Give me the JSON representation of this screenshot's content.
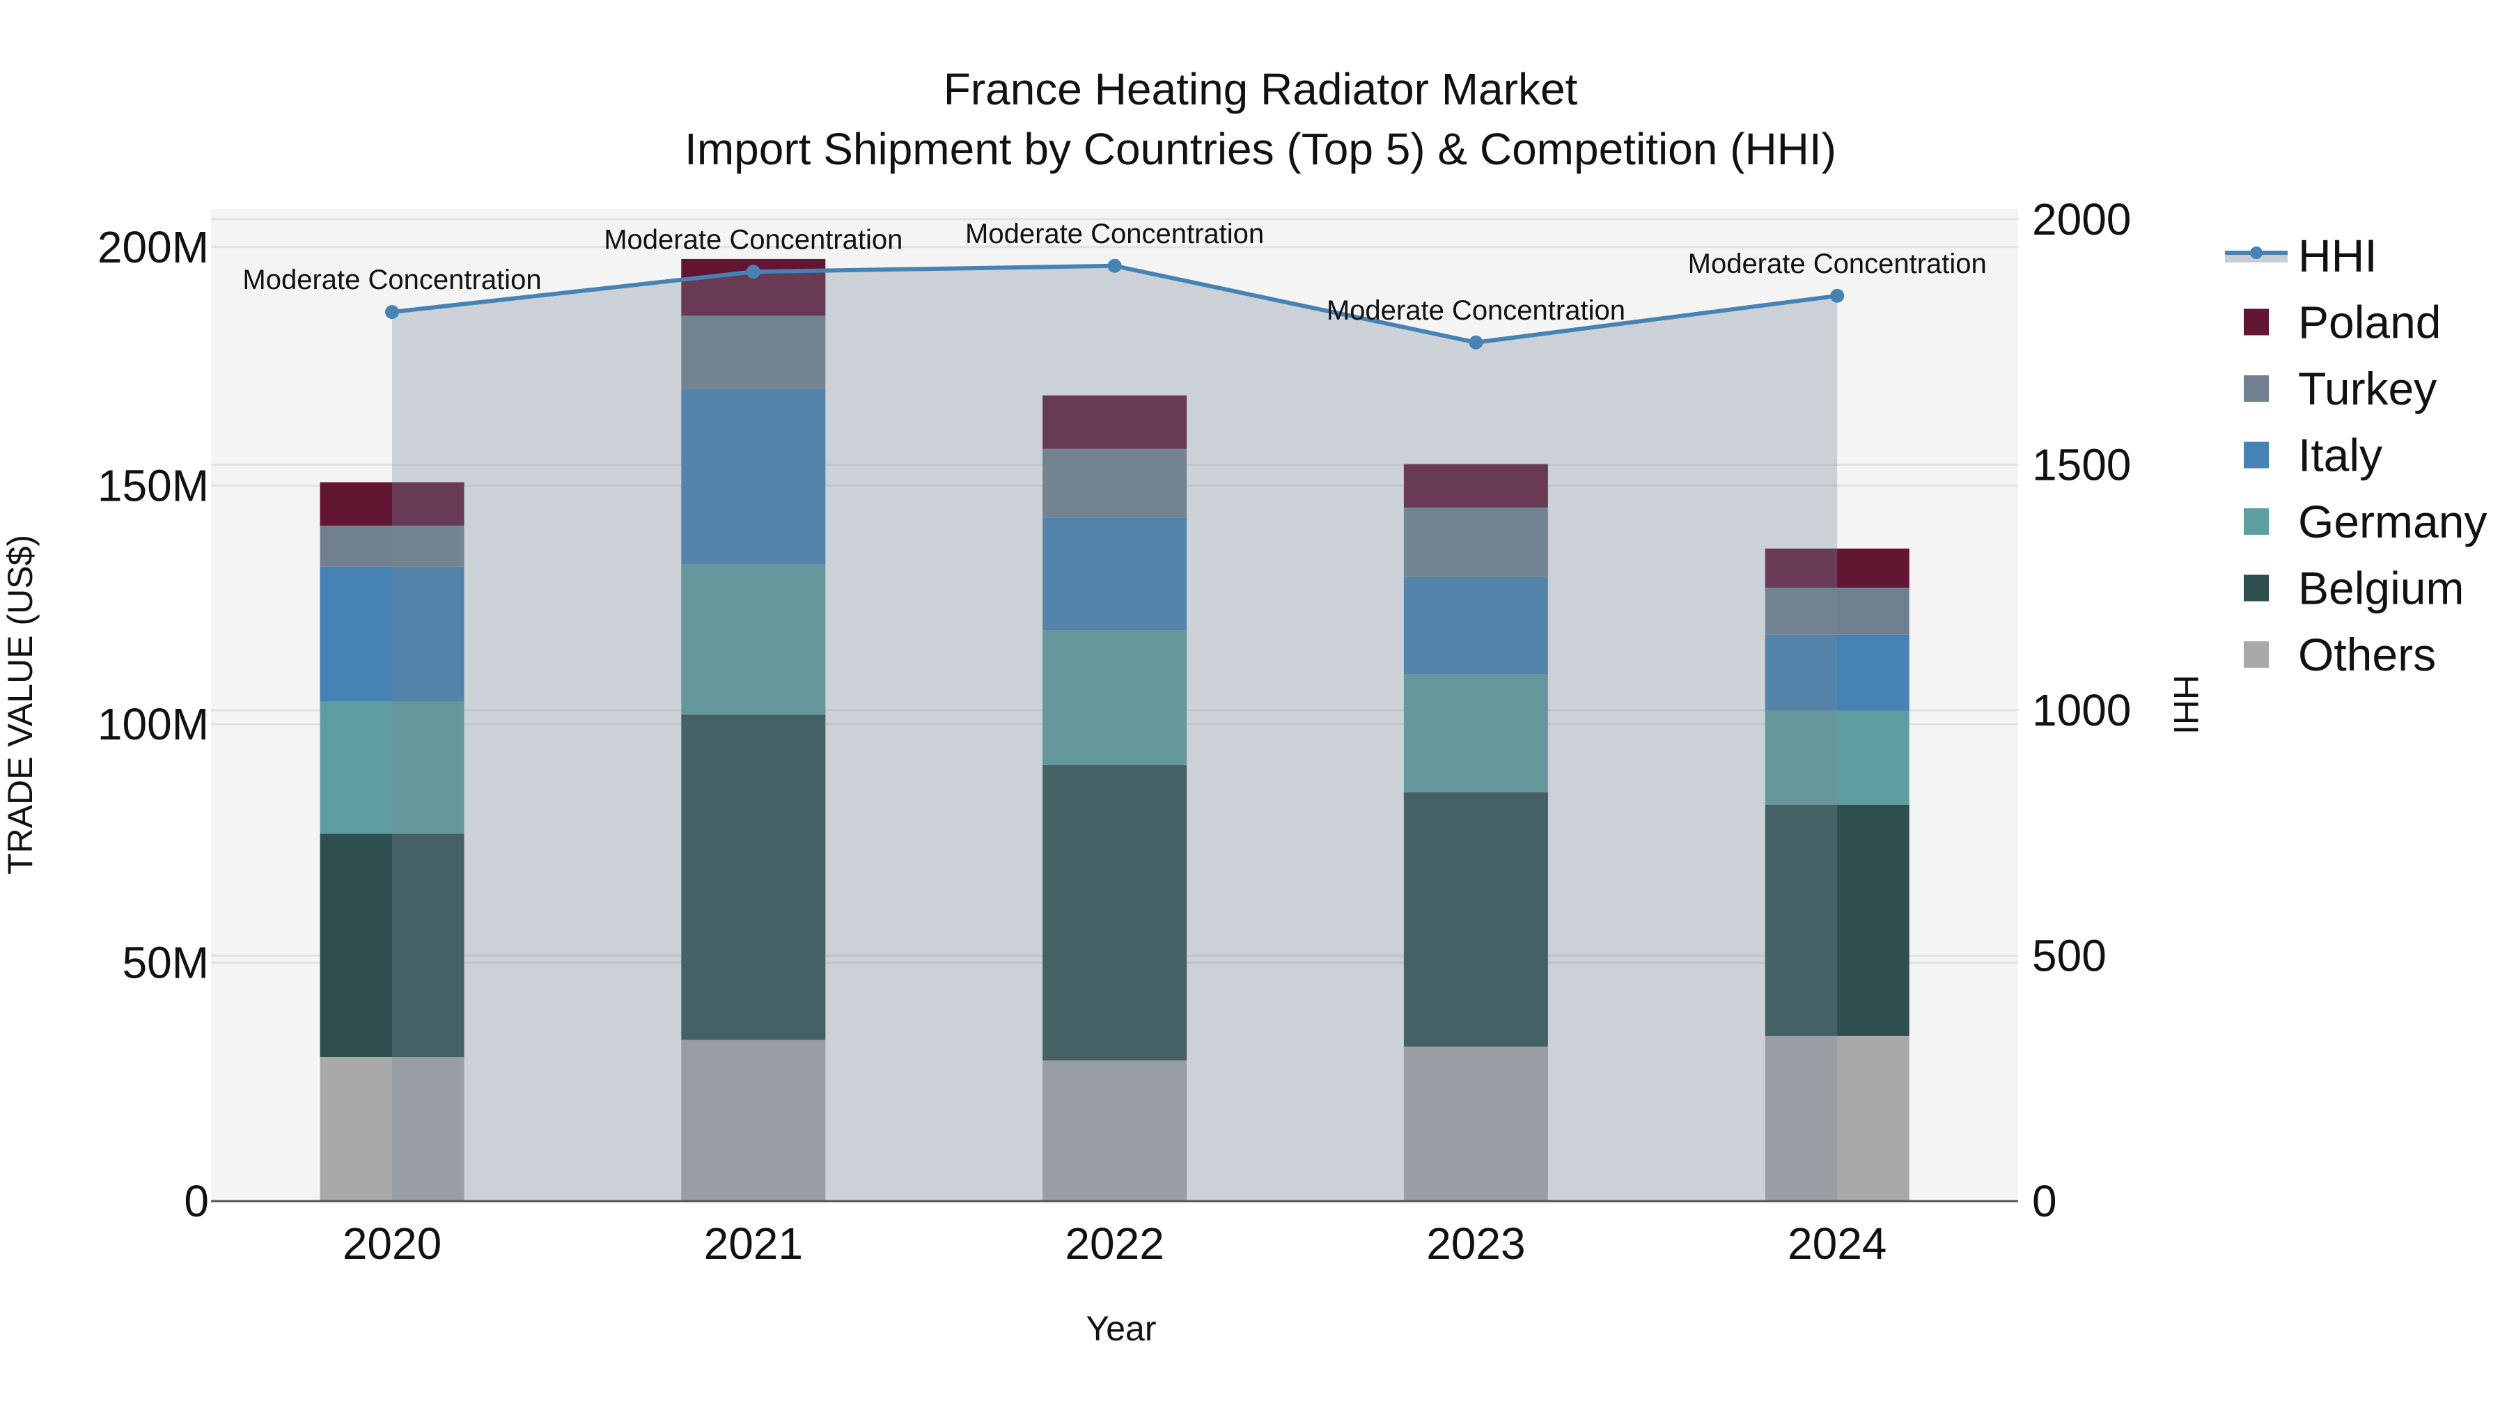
{
  "title": {
    "line1": "France Heating Radiator Market",
    "line2": "Import Shipment by Countries (Top 5) & Competition (HHI)"
  },
  "axes": {
    "x_title": "Year",
    "y_left_title": "TRADE VALUE (US$)",
    "y_right_title": "HHI",
    "y_left_ticks": [
      {
        "value": 0,
        "label": "0"
      },
      {
        "value": 50,
        "label": "50M"
      },
      {
        "value": 100,
        "label": "100M"
      },
      {
        "value": 150,
        "label": "150M"
      },
      {
        "value": 200,
        "label": "200M"
      }
    ],
    "y_right_ticks": [
      {
        "value": 0,
        "label": "0"
      },
      {
        "value": 500,
        "label": "500"
      },
      {
        "value": 1000,
        "label": "1000"
      },
      {
        "value": 1500,
        "label": "1500"
      },
      {
        "value": 2000,
        "label": "2000"
      }
    ]
  },
  "legend": {
    "items": [
      {
        "label": "HHI",
        "type": "line",
        "color": "#4682B4"
      },
      {
        "label": "Poland",
        "type": "box",
        "color": "#631534"
      },
      {
        "label": "Turkey",
        "type": "box",
        "color": "#708090"
      },
      {
        "label": "Italy",
        "type": "box",
        "color": "#4682B4"
      },
      {
        "label": "Germany",
        "type": "box",
        "color": "#5F9EA0"
      },
      {
        "label": "Belgium",
        "type": "box",
        "color": "#2F4F4F"
      },
      {
        "label": "Others",
        "type": "box",
        "color": "#A9A9A9"
      }
    ]
  },
  "colors": {
    "plot_bg": "#F4F4F4",
    "grid": "#E2E2E2",
    "hhi_line": "#4682B4",
    "hhi_fill": "rgba(119,136,153,0.32)",
    "axis_line": "#555555"
  },
  "chart_data": {
    "type": "bar",
    "stacked": true,
    "title": "France Heating Radiator Market — Import Shipment by Countries (Top 5) & Competition (HHI)",
    "xlabel": "Year",
    "ylabel": "TRADE VALUE (US$)",
    "y2label": "HHI",
    "unit": "US$ millions",
    "ylim": [
      0,
      208
    ],
    "y2lim": [
      0,
      2021
    ],
    "grid": true,
    "legend_position": "right",
    "categories": [
      "2020",
      "2021",
      "2022",
      "2023",
      "2024"
    ],
    "series": [
      {
        "name": "Others",
        "color": "#A9A9A9",
        "values": [
          30.2,
          33.8,
          29.5,
          32.4,
          34.6
        ]
      },
      {
        "name": "Belgium",
        "color": "#2F4F4F",
        "values": [
          46.8,
          68.2,
          61.9,
          53.3,
          48.5
        ]
      },
      {
        "name": "Germany",
        "color": "#5F9EA0",
        "values": [
          27.7,
          31.5,
          28.2,
          24.7,
          19.7
        ]
      },
      {
        "name": "Italy",
        "color": "#4682B4",
        "values": [
          28.3,
          36.7,
          23.7,
          20.4,
          15.9
        ]
      },
      {
        "name": "Turkey",
        "color": "#708090",
        "values": [
          8.6,
          15.4,
          14.4,
          14.6,
          9.9
        ]
      },
      {
        "name": "Poland",
        "color": "#631534",
        "values": [
          9.1,
          11.9,
          11.2,
          9.1,
          8.2
        ]
      }
    ],
    "line_series": {
      "name": "HHI",
      "axis": "right",
      "color": "#4682B4",
      "fill": "tozeroy",
      "values": [
        1811,
        1893,
        1905,
        1749,
        1844
      ],
      "annotations": [
        "Moderate Concentration",
        "Moderate Concentration",
        "Moderate Concentration",
        "Moderate Concentration",
        "Moderate Concentration"
      ]
    }
  }
}
